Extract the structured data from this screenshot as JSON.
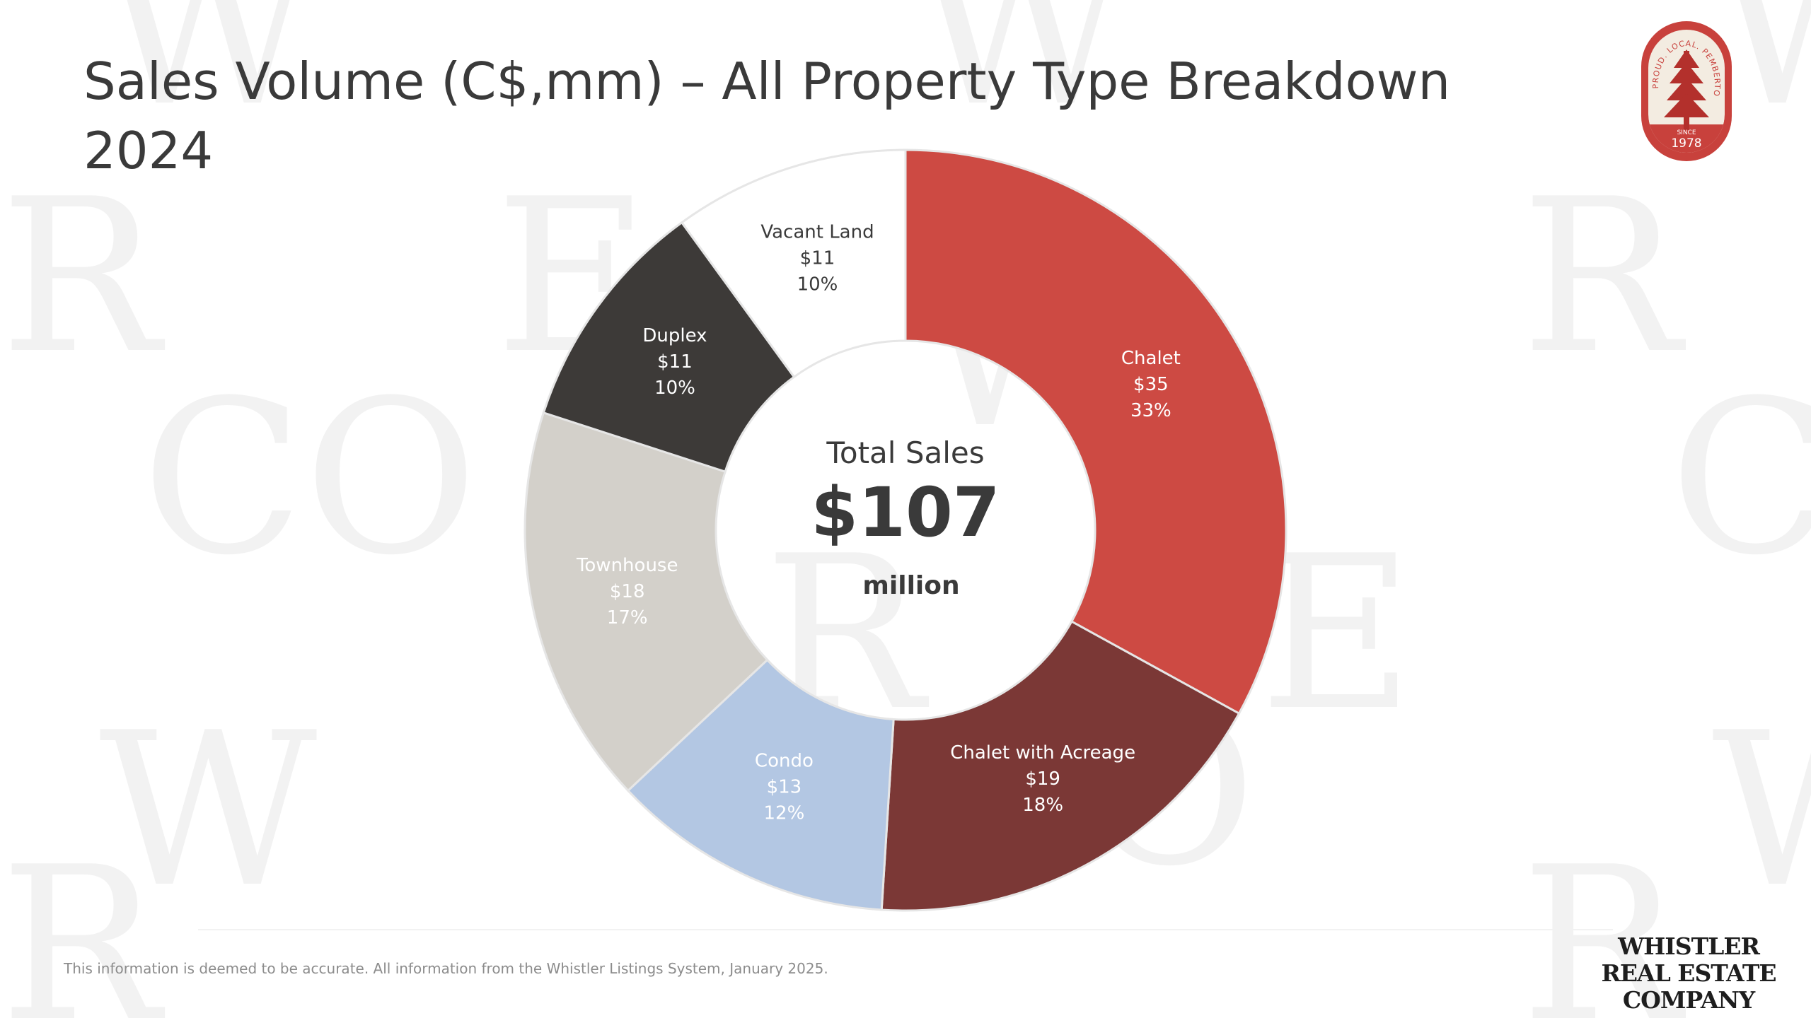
{
  "slide": {
    "title_line1": "Sales Volume (C$,mm) – All Property Type Breakdown",
    "title_line2": "2024",
    "footer_note": "This information is deemed to be accurate. All information from the Whistler Listings System, January 2025."
  },
  "center": {
    "title": "Total Sales",
    "value": "$107",
    "unit": "million"
  },
  "logo": {
    "badge_text": "PROUD. LOCAL. PEMBERTON",
    "badge_since": "SINCE",
    "badge_year": "1978",
    "company_line1": "WHISTLER",
    "company_line2": "REAL ESTATE",
    "company_line3": "COMPANY"
  },
  "colors": {
    "chalet": "#cd4a43",
    "chalet_with_acreage": "#7b3836",
    "condo": "#b3c7e3",
    "townhouse": "#d3d0ca",
    "duplex": "#3d3a38",
    "vacant_land": "#ffffff",
    "badge_red": "#c8413c",
    "badge_cream": "#f3ece1"
  },
  "chart_data": {
    "type": "pie",
    "donut": true,
    "categories": [
      "Chalet",
      "Chalet with Acreage",
      "Condo",
      "Townhouse",
      "Duplex",
      "Vacant Land"
    ],
    "values": [
      35,
      19,
      13,
      18,
      11,
      11
    ],
    "value_labels": [
      "$35",
      "$19",
      "$13",
      "$18",
      "$11",
      "$11"
    ],
    "percent_labels": [
      "33%",
      "18%",
      "12%",
      "17%",
      "10%",
      "10%"
    ],
    "slice_share": [
      0.33,
      0.18,
      0.12,
      0.17,
      0.1,
      0.1
    ],
    "label_colors": [
      "#ffffff",
      "#ffffff",
      "#ffffff",
      "#ffffff",
      "#ffffff",
      "#3a3a3a"
    ]
  }
}
